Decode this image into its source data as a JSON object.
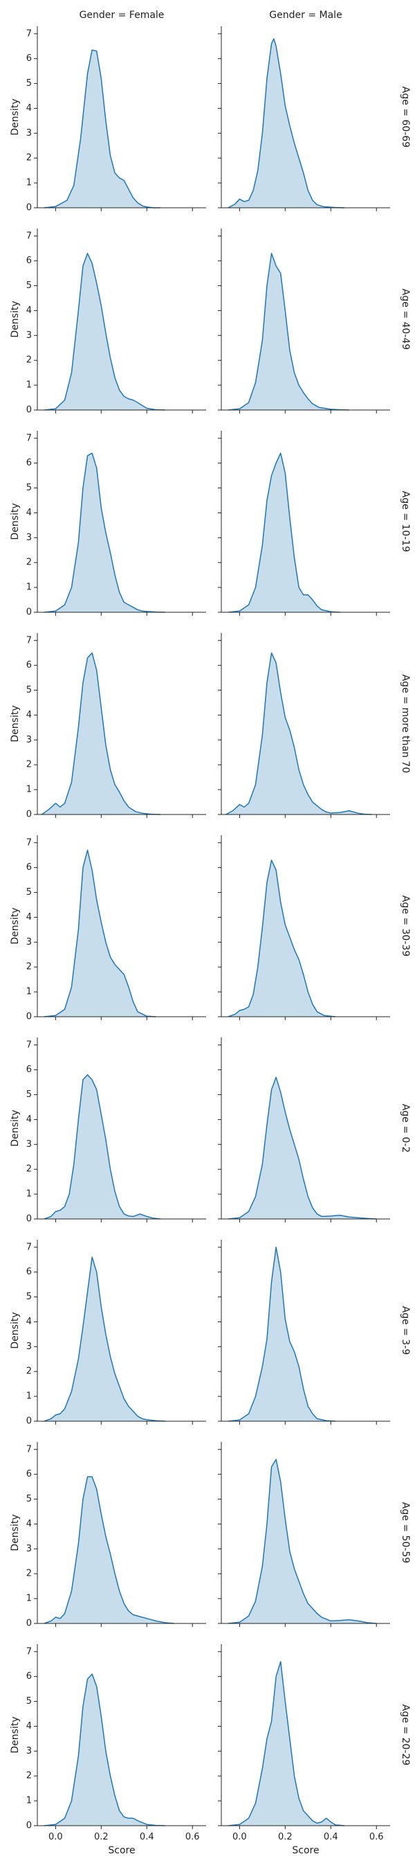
{
  "chart_data": {
    "type": "area",
    "facet_columns": [
      "Gender = Female",
      "Gender = Male"
    ],
    "facet_rows": [
      "Age = 60-69",
      "Age = 40-49",
      "Age = 10-19",
      "Age = more than 70",
      "Age = 30-39",
      "Age = 0-2",
      "Age = 3-9",
      "Age = 50-59",
      "Age = 20-29"
    ],
    "xlabel": "Score",
    "ylabel": "Density",
    "xlim": [
      -0.08,
      0.66
    ],
    "ylim": [
      0,
      7.3
    ],
    "x_ticks": [
      0.0,
      0.2,
      0.4,
      0.6
    ],
    "x_tick_labels": [
      "0.0",
      "0.2",
      "0.4",
      "0.6"
    ],
    "y_ticks": [
      0,
      1,
      2,
      3,
      4,
      5,
      6,
      7
    ],
    "y_tick_labels": [
      "0",
      "1",
      "2",
      "3",
      "4",
      "5",
      "6",
      "7"
    ],
    "line_color": "#1f77b4",
    "fill_color": "#1f77b4",
    "fill_opacity": 0.25,
    "panels": [
      [
        {
          "x": [
            -0.05,
            0.0,
            0.05,
            0.08,
            0.11,
            0.14,
            0.16,
            0.18,
            0.2,
            0.22,
            0.24,
            0.26,
            0.28,
            0.3,
            0.32,
            0.34,
            0.36,
            0.38,
            0.4,
            0.43,
            0.46
          ],
          "y": [
            0,
            0.05,
            0.3,
            0.9,
            2.8,
            5.4,
            6.35,
            6.3,
            5.2,
            3.5,
            2.1,
            1.4,
            1.2,
            1.1,
            0.75,
            0.4,
            0.2,
            0.08,
            0.03,
            0,
            0
          ]
        },
        {
          "x": [
            -0.05,
            -0.02,
            0.0,
            0.02,
            0.04,
            0.06,
            0.08,
            0.1,
            0.12,
            0.14,
            0.15,
            0.16,
            0.18,
            0.2,
            0.22,
            0.24,
            0.26,
            0.28,
            0.3,
            0.32,
            0.34,
            0.37,
            0.42,
            0.46
          ],
          "y": [
            0,
            0.15,
            0.35,
            0.25,
            0.3,
            0.7,
            1.5,
            3.0,
            5.2,
            6.6,
            6.8,
            6.5,
            5.4,
            4.1,
            3.3,
            2.6,
            2.0,
            1.4,
            0.7,
            0.3,
            0.12,
            0.04,
            0.01,
            0
          ]
        }
      ],
      [
        {
          "x": [
            -0.05,
            0.0,
            0.04,
            0.07,
            0.1,
            0.12,
            0.14,
            0.16,
            0.18,
            0.2,
            0.22,
            0.24,
            0.26,
            0.28,
            0.3,
            0.32,
            0.34,
            0.36,
            0.38,
            0.4,
            0.44,
            0.48
          ],
          "y": [
            0,
            0.05,
            0.4,
            1.5,
            4.0,
            5.8,
            6.3,
            5.9,
            5.1,
            4.2,
            3.1,
            2.1,
            1.3,
            0.8,
            0.55,
            0.45,
            0.4,
            0.3,
            0.18,
            0.07,
            0.01,
            0
          ]
        },
        {
          "x": [
            -0.05,
            0.0,
            0.04,
            0.07,
            0.1,
            0.12,
            0.14,
            0.16,
            0.18,
            0.2,
            0.22,
            0.24,
            0.26,
            0.28,
            0.3,
            0.32,
            0.35,
            0.4,
            0.44,
            0.48
          ],
          "y": [
            0,
            0.05,
            0.3,
            1.1,
            2.8,
            5.0,
            6.3,
            5.8,
            5.5,
            4.0,
            2.4,
            1.5,
            1.0,
            0.7,
            0.45,
            0.25,
            0.1,
            0.03,
            0.01,
            0
          ]
        }
      ],
      [
        {
          "x": [
            -0.05,
            0.0,
            0.04,
            0.07,
            0.1,
            0.12,
            0.14,
            0.16,
            0.18,
            0.2,
            0.22,
            0.24,
            0.26,
            0.28,
            0.3,
            0.32,
            0.34,
            0.36,
            0.38,
            0.4,
            0.44,
            0.48
          ],
          "y": [
            0,
            0.05,
            0.3,
            1.0,
            2.8,
            5.0,
            6.3,
            6.4,
            5.8,
            4.2,
            3.2,
            2.4,
            1.5,
            0.8,
            0.4,
            0.3,
            0.2,
            0.1,
            0.05,
            0.03,
            0.01,
            0
          ]
        },
        {
          "x": [
            -0.05,
            0.0,
            0.04,
            0.07,
            0.1,
            0.12,
            0.14,
            0.16,
            0.18,
            0.2,
            0.22,
            0.24,
            0.26,
            0.28,
            0.3,
            0.32,
            0.34,
            0.36,
            0.4,
            0.44
          ],
          "y": [
            0,
            0.05,
            0.3,
            1.0,
            2.7,
            4.5,
            5.5,
            6.0,
            6.4,
            5.6,
            3.8,
            2.2,
            1.0,
            0.7,
            0.7,
            0.5,
            0.25,
            0.1,
            0.02,
            0
          ]
        }
      ],
      [
        {
          "x": [
            -0.06,
            -0.03,
            0.0,
            0.02,
            0.04,
            0.07,
            0.1,
            0.12,
            0.14,
            0.16,
            0.18,
            0.2,
            0.22,
            0.24,
            0.26,
            0.28,
            0.3,
            0.32,
            0.35,
            0.38,
            0.42,
            0.46
          ],
          "y": [
            0,
            0.2,
            0.45,
            0.3,
            0.45,
            1.3,
            3.5,
            5.3,
            6.3,
            6.5,
            5.8,
            4.3,
            2.8,
            1.8,
            1.2,
            0.9,
            0.55,
            0.3,
            0.12,
            0.05,
            0.01,
            0
          ]
        },
        {
          "x": [
            -0.06,
            -0.03,
            0.0,
            0.02,
            0.04,
            0.07,
            0.1,
            0.12,
            0.14,
            0.16,
            0.18,
            0.2,
            0.22,
            0.24,
            0.26,
            0.28,
            0.3,
            0.32,
            0.34,
            0.36,
            0.38,
            0.4,
            0.44,
            0.48,
            0.52,
            0.55,
            0.58
          ],
          "y": [
            0,
            0.15,
            0.4,
            0.3,
            0.45,
            1.2,
            3.2,
            5.3,
            6.5,
            6.1,
            4.9,
            3.9,
            3.4,
            2.7,
            1.8,
            1.2,
            0.8,
            0.5,
            0.35,
            0.2,
            0.1,
            0.06,
            0.08,
            0.15,
            0.05,
            0.01,
            0
          ]
        }
      ],
      [
        {
          "x": [
            -0.05,
            0.0,
            0.04,
            0.07,
            0.1,
            0.12,
            0.14,
            0.16,
            0.18,
            0.2,
            0.22,
            0.24,
            0.26,
            0.28,
            0.3,
            0.32,
            0.34,
            0.36,
            0.4,
            0.44
          ],
          "y": [
            0,
            0.05,
            0.3,
            1.2,
            3.5,
            6.0,
            6.7,
            5.9,
            4.7,
            3.8,
            3.0,
            2.4,
            2.1,
            1.9,
            1.7,
            1.2,
            0.6,
            0.2,
            0.02,
            0
          ]
        },
        {
          "x": [
            -0.05,
            -0.02,
            0.0,
            0.02,
            0.04,
            0.06,
            0.08,
            0.1,
            0.12,
            0.14,
            0.16,
            0.18,
            0.2,
            0.22,
            0.24,
            0.26,
            0.28,
            0.3,
            0.32,
            0.34,
            0.37,
            0.42
          ],
          "y": [
            0,
            0.1,
            0.25,
            0.3,
            0.4,
            0.9,
            2.0,
            3.6,
            5.4,
            6.3,
            5.9,
            4.6,
            3.7,
            3.2,
            2.7,
            2.3,
            1.7,
            1.0,
            0.5,
            0.2,
            0.05,
            0
          ]
        }
      ],
      [
        {
          "x": [
            -0.05,
            -0.02,
            0.0,
            0.02,
            0.04,
            0.06,
            0.08,
            0.1,
            0.12,
            0.14,
            0.16,
            0.18,
            0.2,
            0.22,
            0.24,
            0.26,
            0.28,
            0.3,
            0.32,
            0.34,
            0.37,
            0.4,
            0.43,
            0.46
          ],
          "y": [
            0,
            0.1,
            0.3,
            0.35,
            0.5,
            1.0,
            2.2,
            4.0,
            5.6,
            5.8,
            5.6,
            5.2,
            4.2,
            3.2,
            2.0,
            1.1,
            0.5,
            0.2,
            0.12,
            0.1,
            0.2,
            0.1,
            0.03,
            0
          ]
        },
        {
          "x": [
            -0.05,
            0.0,
            0.04,
            0.07,
            0.1,
            0.12,
            0.14,
            0.16,
            0.18,
            0.2,
            0.22,
            0.24,
            0.26,
            0.28,
            0.3,
            0.32,
            0.34,
            0.36,
            0.4,
            0.44,
            0.48,
            0.52,
            0.56,
            0.6
          ],
          "y": [
            0,
            0.05,
            0.3,
            0.9,
            2.2,
            3.8,
            5.2,
            5.7,
            5.1,
            4.3,
            3.6,
            3.0,
            2.4,
            1.6,
            0.9,
            0.45,
            0.2,
            0.1,
            0.12,
            0.15,
            0.08,
            0.05,
            0.02,
            0
          ]
        }
      ],
      [
        {
          "x": [
            -0.05,
            -0.02,
            0.0,
            0.02,
            0.04,
            0.07,
            0.1,
            0.12,
            0.14,
            0.16,
            0.18,
            0.2,
            0.22,
            0.24,
            0.26,
            0.28,
            0.3,
            0.32,
            0.34,
            0.36,
            0.38,
            0.4,
            0.44,
            0.48
          ],
          "y": [
            0,
            0.1,
            0.25,
            0.3,
            0.5,
            1.2,
            2.5,
            3.8,
            5.2,
            6.6,
            6.0,
            4.6,
            3.5,
            2.6,
            1.9,
            1.4,
            0.9,
            0.6,
            0.4,
            0.2,
            0.1,
            0.06,
            0.02,
            0
          ]
        },
        {
          "x": [
            -0.05,
            0.0,
            0.04,
            0.07,
            0.1,
            0.12,
            0.14,
            0.16,
            0.18,
            0.2,
            0.22,
            0.24,
            0.26,
            0.28,
            0.3,
            0.32,
            0.34,
            0.38,
            0.42
          ],
          "y": [
            0,
            0.05,
            0.3,
            1.0,
            2.2,
            3.3,
            5.6,
            7.0,
            6.0,
            4.1,
            3.2,
            2.8,
            2.2,
            1.3,
            0.6,
            0.3,
            0.1,
            0.02,
            0
          ]
        }
      ],
      [
        {
          "x": [
            -0.05,
            -0.02,
            0.0,
            0.02,
            0.04,
            0.07,
            0.1,
            0.12,
            0.14,
            0.16,
            0.18,
            0.2,
            0.22,
            0.24,
            0.26,
            0.28,
            0.3,
            0.32,
            0.34,
            0.36,
            0.4,
            0.44,
            0.48,
            0.52
          ],
          "y": [
            0,
            0.1,
            0.25,
            0.2,
            0.4,
            1.3,
            3.2,
            5.0,
            5.9,
            5.9,
            5.4,
            4.4,
            3.5,
            2.8,
            2.0,
            1.3,
            0.8,
            0.5,
            0.35,
            0.3,
            0.2,
            0.1,
            0.03,
            0
          ]
        },
        {
          "x": [
            -0.05,
            0.0,
            0.04,
            0.07,
            0.1,
            0.12,
            0.14,
            0.16,
            0.18,
            0.2,
            0.22,
            0.24,
            0.26,
            0.28,
            0.3,
            0.32,
            0.34,
            0.36,
            0.4,
            0.44,
            0.48,
            0.52,
            0.56,
            0.6
          ],
          "y": [
            0,
            0.05,
            0.3,
            0.9,
            2.3,
            4.0,
            6.3,
            6.6,
            5.7,
            4.2,
            2.9,
            2.2,
            1.7,
            1.2,
            0.8,
            0.6,
            0.4,
            0.25,
            0.1,
            0.12,
            0.15,
            0.1,
            0.03,
            0
          ]
        }
      ],
      [
        {
          "x": [
            -0.05,
            0.0,
            0.04,
            0.07,
            0.1,
            0.12,
            0.14,
            0.16,
            0.18,
            0.2,
            0.22,
            0.24,
            0.26,
            0.28,
            0.3,
            0.32,
            0.34,
            0.36,
            0.4,
            0.44,
            0.48
          ],
          "y": [
            0,
            0.05,
            0.3,
            1.0,
            2.8,
            4.8,
            5.9,
            6.1,
            5.6,
            4.4,
            3.0,
            2.0,
            1.2,
            0.6,
            0.35,
            0.3,
            0.3,
            0.2,
            0.05,
            0.01,
            0
          ]
        },
        {
          "x": [
            -0.05,
            0.0,
            0.04,
            0.07,
            0.1,
            0.12,
            0.14,
            0.16,
            0.18,
            0.2,
            0.22,
            0.24,
            0.26,
            0.28,
            0.3,
            0.32,
            0.34,
            0.36,
            0.38,
            0.4,
            0.42,
            0.46
          ],
          "y": [
            0,
            0.05,
            0.3,
            0.9,
            2.3,
            3.5,
            4.2,
            6.0,
            6.6,
            5.0,
            3.5,
            2.0,
            1.1,
            0.6,
            0.4,
            0.2,
            0.1,
            0.15,
            0.3,
            0.15,
            0.03,
            0
          ]
        }
      ]
    ]
  }
}
